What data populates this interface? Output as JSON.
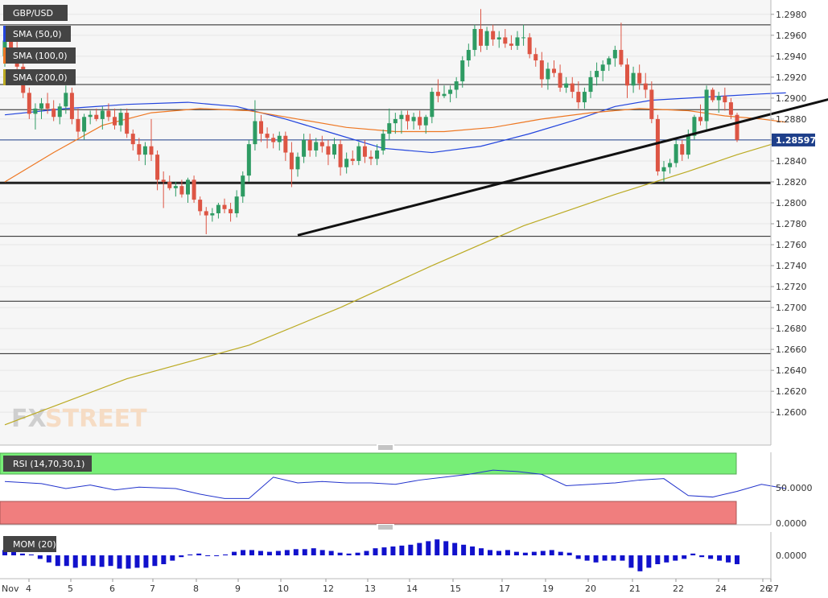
{
  "symbol": "GBP/USD",
  "watermark": {
    "part1": "FX",
    "part2": "STREET"
  },
  "current_price_label": "1.28597",
  "indicators": [
    {
      "label": "SMA (50,0)",
      "color": "#2244dd"
    },
    {
      "label": "SMA (100,0)",
      "color": "#ee7722"
    },
    {
      "label": "SMA (200,0)",
      "color": "#bbaa22"
    }
  ],
  "rsi_label": "RSI (14,70,30,1)",
  "mom_label": "MOM (20)",
  "colors": {
    "bull": "#2e9b63",
    "bear": "#dd5544",
    "rsi": "#2233cc",
    "mom": "#1111cc",
    "rsi_over": "#77ee77",
    "rsi_under": "#f07e7e"
  },
  "chart_data": {
    "type": "candlestick",
    "pair": "GBP/USD",
    "y_ticks": [
      "1.2980",
      "1.2960",
      "1.2940",
      "1.2920",
      "1.2900",
      "1.2880",
      "1.2860",
      "1.2840",
      "1.2820",
      "1.2800",
      "1.2780",
      "1.2760",
      "1.2740",
      "1.2720",
      "1.2700",
      "1.2680",
      "1.2660",
      "1.2640",
      "1.2620",
      "1.2600"
    ],
    "ylim": [
      1.2584,
      1.2986
    ],
    "x_labels": [
      "Nov",
      "4",
      "5",
      "6",
      "7",
      "8",
      "9",
      "10",
      "12",
      "13",
      "14",
      "15",
      "17",
      "19",
      "20",
      "21",
      "22",
      "24",
      "26",
      "27"
    ],
    "horizontal_levels": [
      1.297,
      1.2913,
      1.2889,
      1.286,
      1.2819,
      1.2768,
      1.2706,
      1.2656
    ],
    "support_level": 1.2819,
    "trendlines": [
      {
        "from": [
          48,
          1.2769
        ],
        "to": [
          174,
          1.2957
        ]
      }
    ],
    "candles": [
      [
        1.294,
        1.296,
        1.293,
        1.2955
      ],
      [
        1.2955,
        1.2965,
        1.294,
        1.2945
      ],
      [
        1.2945,
        1.2955,
        1.2925,
        1.293
      ],
      [
        1.293,
        1.294,
        1.29,
        1.2905
      ],
      [
        1.2905,
        1.291,
        1.288,
        1.2885
      ],
      [
        1.2885,
        1.2895,
        1.287,
        1.289
      ],
      [
        1.289,
        1.29,
        1.288,
        1.2895
      ],
      [
        1.2895,
        1.2905,
        1.2885,
        1.289
      ],
      [
        1.289,
        1.2898,
        1.2878,
        1.2882
      ],
      [
        1.2882,
        1.2895,
        1.2875,
        1.2892
      ],
      [
        1.2892,
        1.2912,
        1.2885,
        1.2905
      ],
      [
        1.2905,
        1.291,
        1.2875,
        1.288
      ],
      [
        1.288,
        1.289,
        1.2862,
        1.2868
      ],
      [
        1.2868,
        1.2885,
        1.286,
        1.2882
      ],
      [
        1.2882,
        1.2888,
        1.2875,
        1.2884
      ],
      [
        1.2884,
        1.289,
        1.2878,
        1.288
      ],
      [
        1.288,
        1.2892,
        1.287,
        1.2888
      ],
      [
        1.2888,
        1.2895,
        1.2878,
        1.2882
      ],
      [
        1.2882,
        1.289,
        1.287,
        1.2874
      ],
      [
        1.2874,
        1.289,
        1.2868,
        1.2886
      ],
      [
        1.2886,
        1.289,
        1.2862,
        1.2866
      ],
      [
        1.2866,
        1.287,
        1.285,
        1.2856
      ],
      [
        1.2856,
        1.2862,
        1.284,
        1.2846
      ],
      [
        1.2846,
        1.2858,
        1.2836,
        1.2854
      ],
      [
        1.2854,
        1.288,
        1.284,
        1.2846
      ],
      [
        1.2846,
        1.285,
        1.2812,
        1.2822
      ],
      [
        1.2822,
        1.283,
        1.2795,
        1.282
      ],
      [
        1.282,
        1.2826,
        1.2812,
        1.2814
      ],
      [
        1.2814,
        1.282,
        1.2806,
        1.2816
      ],
      [
        1.2816,
        1.2822,
        1.2805,
        1.2808
      ],
      [
        1.2808,
        1.2824,
        1.28,
        1.2822
      ],
      [
        1.2822,
        1.2826,
        1.28,
        1.2803
      ],
      [
        1.2803,
        1.2806,
        1.2788,
        1.2792
      ],
      [
        1.2792,
        1.2796,
        1.277,
        1.2788
      ],
      [
        1.2788,
        1.2795,
        1.2782,
        1.279
      ],
      [
        1.279,
        1.28,
        1.2785,
        1.2798
      ],
      [
        1.2798,
        1.2804,
        1.279,
        1.2794
      ],
      [
        1.2794,
        1.28,
        1.2782,
        1.279
      ],
      [
        1.279,
        1.2812,
        1.2786,
        1.2806
      ],
      [
        1.2806,
        1.283,
        1.28,
        1.2826
      ],
      [
        1.2826,
        1.286,
        1.282,
        1.2856
      ],
      [
        1.2856,
        1.2898,
        1.285,
        1.2878
      ],
      [
        1.2878,
        1.2884,
        1.2858,
        1.2866
      ],
      [
        1.2866,
        1.2872,
        1.2852,
        1.2862
      ],
      [
        1.2862,
        1.2866,
        1.2852,
        1.2858
      ],
      [
        1.2858,
        1.2868,
        1.285,
        1.2864
      ],
      [
        1.2864,
        1.2868,
        1.284,
        1.2848
      ],
      [
        1.2848,
        1.2858,
        1.2815,
        1.2832
      ],
      [
        1.2832,
        1.2848,
        1.2825,
        1.2844
      ],
      [
        1.2844,
        1.2866,
        1.2838,
        1.286
      ],
      [
        1.286,
        1.2866,
        1.2844,
        1.285
      ],
      [
        1.285,
        1.2862,
        1.2844,
        1.2858
      ],
      [
        1.2858,
        1.2864,
        1.2848,
        1.2854
      ],
      [
        1.2854,
        1.286,
        1.2836,
        1.2846
      ],
      [
        1.2846,
        1.2862,
        1.2842,
        1.2856
      ],
      [
        1.2856,
        1.286,
        1.2826,
        1.2834
      ],
      [
        1.2834,
        1.2848,
        1.2828,
        1.2842
      ],
      [
        1.2842,
        1.285,
        1.2836,
        1.284
      ],
      [
        1.284,
        1.2858,
        1.2836,
        1.2854
      ],
      [
        1.2854,
        1.286,
        1.2838,
        1.2844
      ],
      [
        1.2844,
        1.285,
        1.2836,
        1.2842
      ],
      [
        1.2842,
        1.2856,
        1.2836,
        1.285
      ],
      [
        1.285,
        1.287,
        1.2846,
        1.2866
      ],
      [
        1.2866,
        1.289,
        1.286,
        1.2876
      ],
      [
        1.2876,
        1.2886,
        1.2866,
        1.288
      ],
      [
        1.288,
        1.2888,
        1.2866,
        1.2884
      ],
      [
        1.2884,
        1.2888,
        1.287,
        1.2878
      ],
      [
        1.2878,
        1.2886,
        1.287,
        1.2882
      ],
      [
        1.2882,
        1.2888,
        1.287,
        1.2874
      ],
      [
        1.2874,
        1.2884,
        1.2866,
        1.2882
      ],
      [
        1.2882,
        1.291,
        1.2876,
        1.2906
      ],
      [
        1.2906,
        1.2918,
        1.2896,
        1.2902
      ],
      [
        1.2902,
        1.2912,
        1.29,
        1.2904
      ],
      [
        1.2904,
        1.2912,
        1.2896,
        1.2908
      ],
      [
        1.2908,
        1.292,
        1.29,
        1.2916
      ],
      [
        1.2916,
        1.294,
        1.291,
        1.2936
      ],
      [
        1.2936,
        1.2952,
        1.293,
        1.2946
      ],
      [
        1.2946,
        1.297,
        1.294,
        1.2966
      ],
      [
        1.2966,
        1.2985,
        1.2944,
        1.295
      ],
      [
        1.295,
        1.2968,
        1.2946,
        1.2964
      ],
      [
        1.2964,
        1.297,
        1.295,
        1.2956
      ],
      [
        1.2956,
        1.2964,
        1.2948,
        1.2958
      ],
      [
        1.2958,
        1.2966,
        1.2948,
        1.2952
      ],
      [
        1.2952,
        1.296,
        1.2946,
        1.295
      ],
      [
        1.295,
        1.2964,
        1.2946,
        1.2958
      ],
      [
        1.2958,
        1.297,
        1.295,
        1.2958
      ],
      [
        1.2958,
        1.2962,
        1.2938,
        1.2942
      ],
      [
        1.2942,
        1.2948,
        1.293,
        1.2936
      ],
      [
        1.2936,
        1.2944,
        1.291,
        1.2918
      ],
      [
        1.2918,
        1.2934,
        1.2908,
        1.2928
      ],
      [
        1.2928,
        1.2936,
        1.292,
        1.2924
      ],
      [
        1.2924,
        1.2932,
        1.2906,
        1.291
      ],
      [
        1.291,
        1.292,
        1.2905,
        1.2914
      ],
      [
        1.2914,
        1.292,
        1.29,
        1.2906
      ],
      [
        1.2906,
        1.2916,
        1.289,
        1.2896
      ],
      [
        1.2896,
        1.291,
        1.289,
        1.2906
      ],
      [
        1.2906,
        1.2926,
        1.29,
        1.292
      ],
      [
        1.292,
        1.2934,
        1.2912,
        1.2926
      ],
      [
        1.2926,
        1.2936,
        1.2916,
        1.2932
      ],
      [
        1.2932,
        1.294,
        1.2926,
        1.2938
      ],
      [
        1.2938,
        1.295,
        1.293,
        1.2946
      ],
      [
        1.2946,
        1.2972,
        1.293,
        1.2932
      ],
      [
        1.2932,
        1.2938,
        1.29,
        1.2912
      ],
      [
        1.2912,
        1.293,
        1.2905,
        1.2924
      ],
      [
        1.2924,
        1.2932,
        1.2908,
        1.2914
      ],
      [
        1.2914,
        1.2924,
        1.29,
        1.2908
      ],
      [
        1.2908,
        1.2916,
        1.2876,
        1.288
      ],
      [
        1.288,
        1.2884,
        1.2826,
        1.283
      ],
      [
        1.283,
        1.284,
        1.282,
        1.2834
      ],
      [
        1.2834,
        1.2842,
        1.2828,
        1.2838
      ],
      [
        1.2838,
        1.286,
        1.2834,
        1.2856
      ],
      [
        1.2856,
        1.286,
        1.284,
        1.2846
      ],
      [
        1.2846,
        1.287,
        1.2842,
        1.2864
      ],
      [
        1.2864,
        1.2884,
        1.286,
        1.2882
      ],
      [
        1.2882,
        1.2894,
        1.2874,
        1.2878
      ],
      [
        1.2878,
        1.2912,
        1.287,
        1.2908
      ],
      [
        1.2908,
        1.291,
        1.2896,
        1.2898
      ],
      [
        1.2898,
        1.2906,
        1.2886,
        1.2902
      ],
      [
        1.2902,
        1.291,
        1.2888,
        1.2896
      ],
      [
        1.2896,
        1.29,
        1.288,
        1.2884
      ],
      [
        1.2884,
        1.2886,
        1.2858,
        1.286
      ]
    ],
    "sma50": [
      [
        0,
        1.2884
      ],
      [
        10,
        1.289
      ],
      [
        20,
        1.2894
      ],
      [
        30,
        1.2896
      ],
      [
        38,
        1.2892
      ],
      [
        46,
        1.288
      ],
      [
        54,
        1.2866
      ],
      [
        62,
        1.2852
      ],
      [
        70,
        1.2848
      ],
      [
        78,
        1.2854
      ],
      [
        86,
        1.2866
      ],
      [
        94,
        1.288
      ],
      [
        100,
        1.2892
      ],
      [
        106,
        1.2898
      ],
      [
        112,
        1.29
      ],
      [
        118,
        1.2902
      ],
      [
        124,
        1.2904
      ],
      [
        128,
        1.2905
      ]
    ],
    "sma100": [
      [
        0,
        1.282
      ],
      [
        8,
        1.2848
      ],
      [
        16,
        1.2874
      ],
      [
        24,
        1.2886
      ],
      [
        32,
        1.289
      ],
      [
        40,
        1.2888
      ],
      [
        48,
        1.288
      ],
      [
        56,
        1.2872
      ],
      [
        64,
        1.2868
      ],
      [
        72,
        1.2868
      ],
      [
        80,
        1.2872
      ],
      [
        88,
        1.288
      ],
      [
        96,
        1.2886
      ],
      [
        104,
        1.289
      ],
      [
        112,
        1.2888
      ],
      [
        118,
        1.2883
      ],
      [
        124,
        1.288
      ],
      [
        128,
        1.2877
      ]
    ],
    "sma200": [
      [
        0,
        1.2588
      ],
      [
        20,
        1.2632
      ],
      [
        40,
        1.2664
      ],
      [
        55,
        1.27
      ],
      [
        70,
        1.274
      ],
      [
        85,
        1.2778
      ],
      [
        100,
        1.2808
      ],
      [
        112,
        1.283
      ],
      [
        120,
        1.2846
      ],
      [
        128,
        1.286
      ]
    ],
    "rsi": {
      "label": "RSI (14,70,30,1)",
      "overbought": 70,
      "oversold": 30,
      "mid_label": "50.0000",
      "bottom_label": "0.0000",
      "mid_value": 50.0,
      "values": [
        [
          0,
          60
        ],
        [
          6,
          57
        ],
        [
          10,
          50
        ],
        [
          14,
          55
        ],
        [
          18,
          48
        ],
        [
          22,
          52
        ],
        [
          28,
          50
        ],
        [
          32,
          42
        ],
        [
          36,
          36
        ],
        [
          40,
          36
        ],
        [
          44,
          66
        ],
        [
          48,
          58
        ],
        [
          52,
          60
        ],
        [
          56,
          58
        ],
        [
          60,
          58
        ],
        [
          64,
          56
        ],
        [
          68,
          62
        ],
        [
          72,
          66
        ],
        [
          76,
          70
        ],
        [
          80,
          76
        ],
        [
          84,
          74
        ],
        [
          88,
          70
        ],
        [
          92,
          54
        ],
        [
          96,
          56
        ],
        [
          100,
          58
        ],
        [
          104,
          62
        ],
        [
          108,
          64
        ],
        [
          112,
          40
        ],
        [
          116,
          38
        ],
        [
          120,
          46
        ],
        [
          124,
          56
        ],
        [
          128,
          50
        ]
      ]
    },
    "mom": {
      "label": "MOM (20)",
      "zero_label": "0.0000",
      "values": [
        0.0006,
        0.0004,
        0.0002,
        0.0001,
        -0.0004,
        -0.0008,
        -0.0012,
        -0.0012,
        -0.0014,
        -0.0012,
        -0.0012,
        -0.0013,
        -0.0012,
        -0.0015,
        -0.0015,
        -0.0014,
        -0.0014,
        -0.0012,
        -0.001,
        -0.0006,
        -0.0002,
        0.0001,
        0.0002,
        0.0,
        0.0,
        0.0001,
        0.0004,
        0.0006,
        0.0006,
        0.0005,
        0.0004,
        0.0005,
        0.0006,
        0.0007,
        0.0007,
        0.0008,
        0.0006,
        0.0005,
        0.0003,
        0.0002,
        0.0003,
        0.0005,
        0.0008,
        0.0009,
        0.001,
        0.0011,
        0.0012,
        0.0014,
        0.0016,
        0.0018,
        0.0016,
        0.0014,
        0.0012,
        0.001,
        0.0008,
        0.0006,
        0.0005,
        0.0006,
        0.0004,
        0.0003,
        0.0004,
        0.0005,
        0.0006,
        0.0004,
        0.0003,
        -0.0004,
        -0.0006,
        -0.0008,
        -0.0006,
        -0.0006,
        -0.0006,
        -0.0014,
        -0.0018,
        -0.0014,
        -0.001,
        -0.0008,
        -0.0006,
        -0.0004,
        0.0002,
        -0.0002,
        -0.0004,
        -0.0006,
        -0.0008,
        -0.001
      ]
    }
  }
}
